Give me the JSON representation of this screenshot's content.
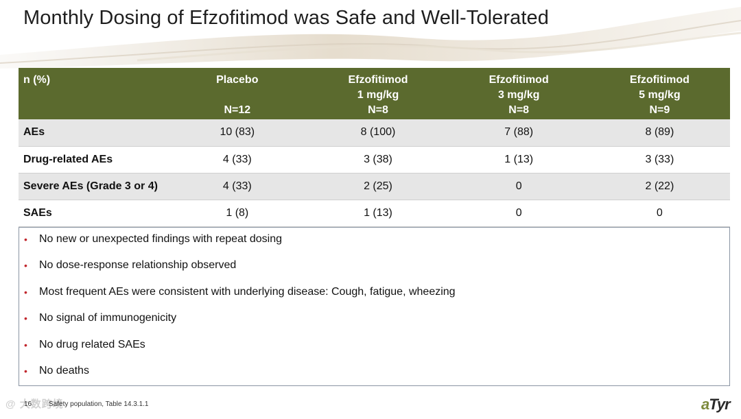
{
  "title": "Monthly Dosing of Efzofitimod was Safe and Well-Tolerated",
  "table": {
    "header": {
      "label": "n (%)",
      "columns": [
        {
          "line1": "Placebo",
          "line2": "",
          "line3": "N=12"
        },
        {
          "line1": "Efzofitimod",
          "line2": "1 mg/kg",
          "line3": "N=8"
        },
        {
          "line1": "Efzofitimod",
          "line2": "3 mg/kg",
          "line3": "N=8"
        },
        {
          "line1": "Efzofitimod",
          "line2": "5 mg/kg",
          "line3": "N=9"
        }
      ]
    },
    "rows": [
      {
        "label": "AEs",
        "values": [
          "10 (83)",
          "8 (100)",
          "7 (88)",
          "8 (89)"
        ]
      },
      {
        "label": "Drug-related AEs",
        "values": [
          "4 (33)",
          "3 (38)",
          "1 (13)",
          "3 (33)"
        ]
      },
      {
        "label": "Severe AEs (Grade 3 or 4)",
        "values": [
          "4 (33)",
          "2 (25)",
          "0",
          "2 (22)"
        ]
      },
      {
        "label": "SAEs",
        "values": [
          "1 (8)",
          "1 (13)",
          "0",
          "0"
        ]
      }
    ]
  },
  "bullets": [
    "No new or unexpected findings with repeat dosing",
    "No dose-response relationship observed",
    "Most frequent AEs were consistent with underlying disease: Cough, fatigue, wheezing",
    "No signal of immunogenicity",
    "No drug related SAEs",
    "No deaths"
  ],
  "bullet_symbol": "•",
  "footer": {
    "page_number": "16",
    "source": "Safety population, Table 14.3.1.1",
    "watermark": "@ 大数跨境"
  },
  "logo": {
    "prefix": "a",
    "suffix": "Tyr"
  },
  "colors": {
    "header_bg": "#5b6a2e",
    "bullet": "#c1272d",
    "row_shade": "#e6e6e6"
  }
}
